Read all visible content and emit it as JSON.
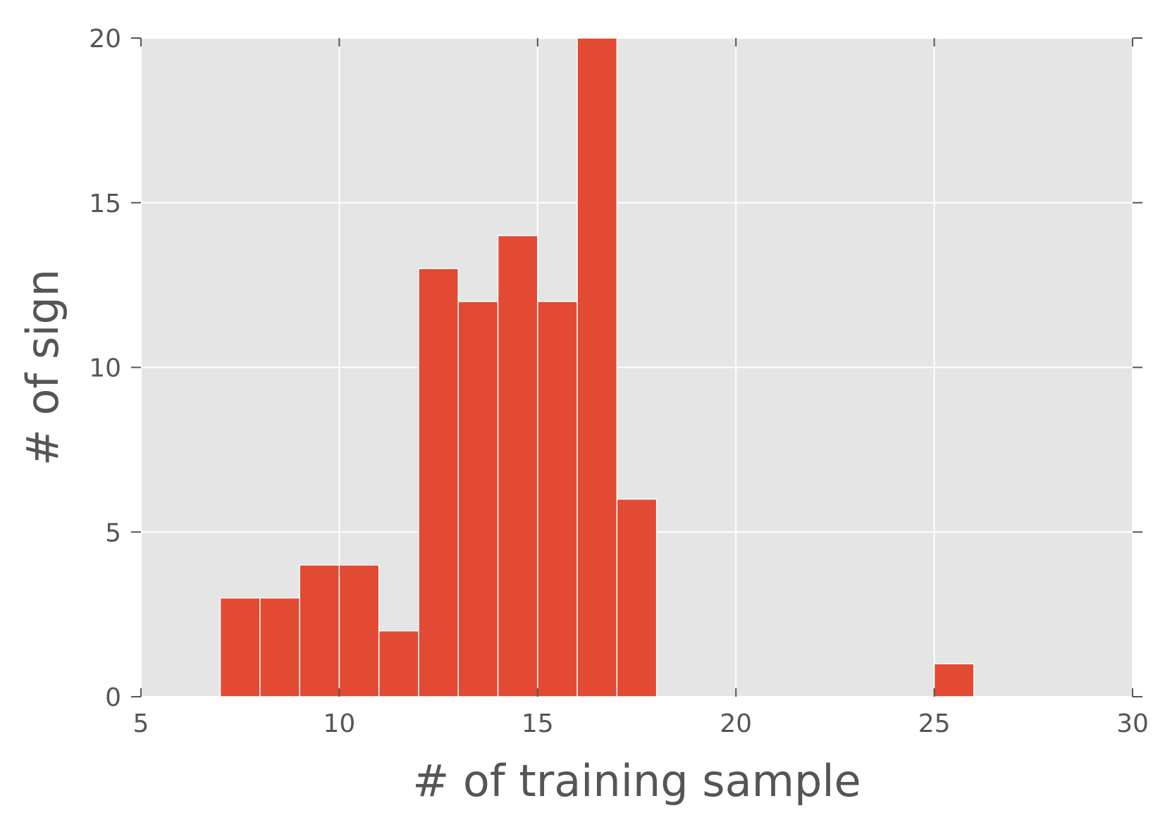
{
  "chart_data": {
    "type": "bar",
    "xlabel": "# of training sample",
    "ylabel": "# of sign",
    "xlim": [
      5,
      30
    ],
    "ylim": [
      0,
      20
    ],
    "xticks": [
      "5",
      "10",
      "15",
      "20",
      "25",
      "30"
    ],
    "yticks": [
      "0",
      "5",
      "10",
      "15",
      "20"
    ],
    "bins": [
      {
        "x0": 7,
        "x1": 8,
        "count": 3
      },
      {
        "x0": 8,
        "x1": 9,
        "count": 3
      },
      {
        "x0": 9,
        "x1": 10,
        "count": 4
      },
      {
        "x0": 10,
        "x1": 11,
        "count": 4
      },
      {
        "x0": 11,
        "x1": 12,
        "count": 2
      },
      {
        "x0": 12,
        "x1": 13,
        "count": 13
      },
      {
        "x0": 13,
        "x1": 14,
        "count": 12
      },
      {
        "x0": 14,
        "x1": 15,
        "count": 14
      },
      {
        "x0": 15,
        "x1": 16,
        "count": 12
      },
      {
        "x0": 16,
        "x1": 17,
        "count": 20
      },
      {
        "x0": 17,
        "x1": 18,
        "count": 6
      },
      {
        "x0": 25,
        "x1": 26,
        "count": 1
      }
    ],
    "grid": true,
    "colors": {
      "bar": "#E24A33",
      "background": "#E5E5E5",
      "grid": "#FFFFFF",
      "text": "#555555"
    }
  }
}
